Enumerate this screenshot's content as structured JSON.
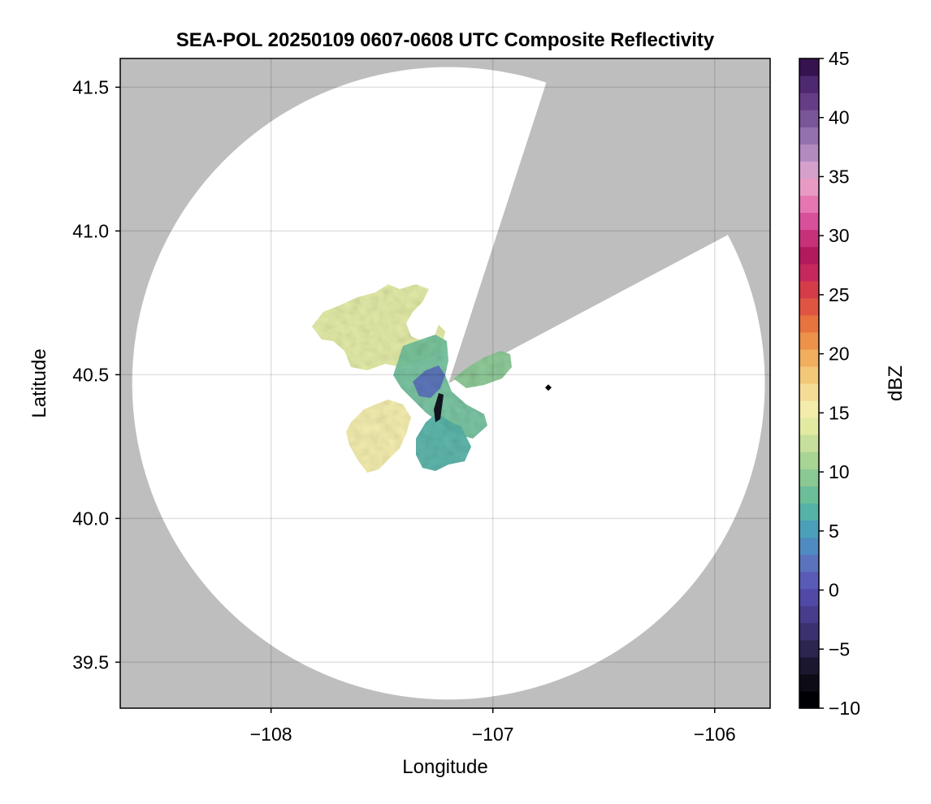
{
  "chart_data": {
    "type": "heatmap",
    "title": "SEA-POL 20250109 0607-0608 UTC Composite Reflectivity",
    "xlabel": "Longitude",
    "ylabel": "Latitude",
    "xlim": [
      -108.68,
      -105.75
    ],
    "ylim": [
      39.34,
      41.6
    ],
    "xticks": [
      -108,
      -107,
      -106
    ],
    "xtick_labels": [
      "−108",
      "−107",
      "−106"
    ],
    "yticks": [
      39.5,
      40.0,
      40.5,
      41.0,
      41.5
    ],
    "ytick_labels": [
      "39.5",
      "40.0",
      "40.5",
      "41.0",
      "41.5"
    ],
    "grid": true,
    "background_color": "#bebebe",
    "coverage_color": "#ffffff",
    "radar": {
      "center": [
        -107.2,
        40.47
      ],
      "radius_deg_lat": 1.1,
      "blocked_sectors_deg": [
        [
          18,
          62
        ]
      ]
    },
    "reflectivity_regions": [
      {
        "lon": -107.55,
        "lat": 40.63,
        "dbz": 14
      },
      {
        "lon": -107.38,
        "lat": 40.55,
        "dbz": 8
      },
      {
        "lon": -107.27,
        "lat": 40.47,
        "dbz": 2
      },
      {
        "lon": -107.52,
        "lat": 40.28,
        "dbz": 15
      },
      {
        "lon": -107.02,
        "lat": 40.5,
        "dbz": 9
      },
      {
        "lon": -107.1,
        "lat": 40.35,
        "dbz": 6
      },
      {
        "lon": -107.2,
        "lat": 40.38,
        "dbz": -8
      }
    ],
    "markers": [
      {
        "lon": -106.75,
        "lat": 40.455,
        "shape": "diamond",
        "color": "#000000"
      }
    ],
    "colorbar": {
      "label": "dBZ",
      "range": [
        -10,
        45
      ],
      "ticks": [
        -10,
        -5,
        0,
        5,
        10,
        15,
        20,
        25,
        30,
        35,
        40,
        45
      ],
      "tick_labels": [
        "−10",
        "−5",
        "0",
        "5",
        "10",
        "15",
        "20",
        "25",
        "30",
        "35",
        "40",
        "45"
      ],
      "colors": [
        "#000004",
        "#0d0b16",
        "#1b1730",
        "#2c2550",
        "#3b3170",
        "#483c8c",
        "#5149a6",
        "#5a5bb6",
        "#5b72bc",
        "#4f8ac0",
        "#4aa0b8",
        "#55b2a6",
        "#6cbe98",
        "#8ac894",
        "#a8d494",
        "#c6df9a",
        "#e2eaa2",
        "#f3ecaa",
        "#f5dc96",
        "#f3c778",
        "#f0ae5e",
        "#ec924a",
        "#e7733e",
        "#df5541",
        "#d43c4a",
        "#c4285c",
        "#b21a5d",
        "#c7317a",
        "#d8509a",
        "#e576b2",
        "#e89ac4",
        "#d6a0cc",
        "#b38ac0",
        "#9470ae",
        "#7a5599",
        "#653d86",
        "#4e2870",
        "#36124f"
      ]
    }
  }
}
